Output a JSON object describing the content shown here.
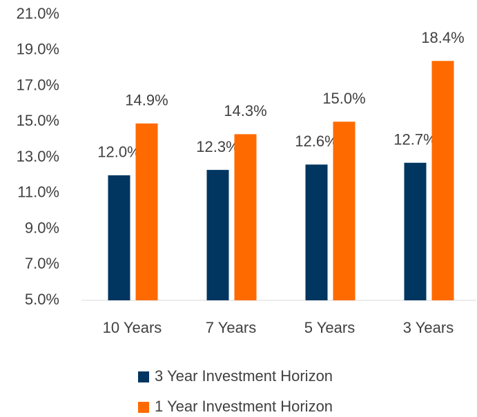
{
  "chart_data": {
    "type": "bar",
    "categories": [
      "10 Years",
      "7 Years",
      "5 Years",
      "3 Years"
    ],
    "series": [
      {
        "name": "3 Year Investment Horizon",
        "color": "#003660",
        "values": [
          12.0,
          12.3,
          12.6,
          12.7
        ],
        "value_labels": [
          "12.0%",
          "12.3%",
          "12.6%",
          "12.7%"
        ]
      },
      {
        "name": "1 Year Investment Horizon",
        "color": "#FF6A00",
        "values": [
          14.9,
          14.3,
          15.0,
          18.4
        ],
        "value_labels": [
          "14.9%",
          "14.3%",
          "15.0%",
          "18.4%"
        ]
      }
    ],
    "ylim": [
      5,
      21
    ],
    "yticks": [
      {
        "value": 5,
        "label": "5.0%"
      },
      {
        "value": 7,
        "label": "7.0%"
      },
      {
        "value": 9,
        "label": "9.0%"
      },
      {
        "value": 11,
        "label": "11.0%"
      },
      {
        "value": 13,
        "label": "13.0%"
      },
      {
        "value": 15,
        "label": "15.0%"
      },
      {
        "value": 17,
        "label": "17.0%"
      },
      {
        "value": 19,
        "label": "19.0%"
      },
      {
        "value": 21,
        "label": "21.0%"
      }
    ],
    "grid": false,
    "legend": "bottom"
  }
}
